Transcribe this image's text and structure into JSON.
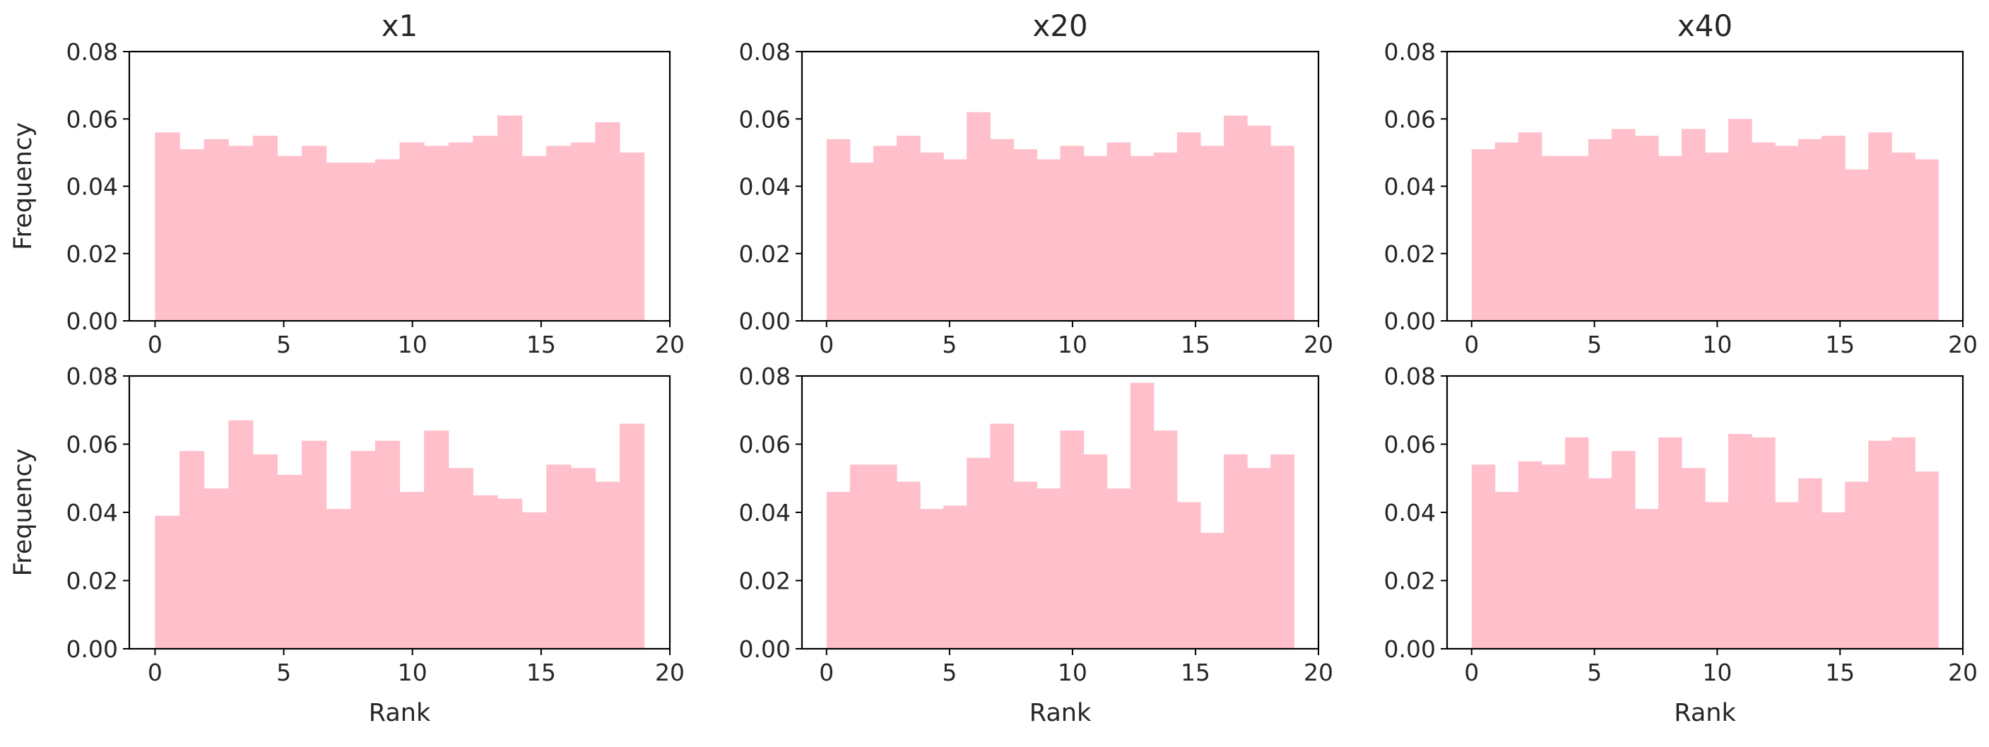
{
  "chart_data": [
    {
      "type": "bar",
      "title": "x1",
      "xlabel": "",
      "ylabel": "Frequency",
      "x": [
        0,
        1,
        2,
        3,
        4,
        5,
        6,
        7,
        8,
        9,
        10,
        11,
        12,
        13,
        14,
        15,
        16,
        17,
        18,
        19
      ],
      "values": [
        0.056,
        0.051,
        0.054,
        0.052,
        0.055,
        0.049,
        0.052,
        0.047,
        0.047,
        0.048,
        0.053,
        0.052,
        0.053,
        0.055,
        0.061,
        0.049,
        0.052,
        0.053,
        0.059,
        0.05
      ],
      "xlim": [
        -1,
        20
      ],
      "ylim": [
        0,
        0.08
      ],
      "xticks": [
        "0",
        "5",
        "10",
        "15",
        "20"
      ],
      "yticks": [
        "0.00",
        "0.02",
        "0.04",
        "0.06",
        "0.08"
      ],
      "color": "#ffc0cb",
      "grid": false
    },
    {
      "type": "bar",
      "title": "x20",
      "xlabel": "",
      "ylabel": "",
      "x": [
        0,
        1,
        2,
        3,
        4,
        5,
        6,
        7,
        8,
        9,
        10,
        11,
        12,
        13,
        14,
        15,
        16,
        17,
        18,
        19
      ],
      "values": [
        0.054,
        0.047,
        0.052,
        0.055,
        0.05,
        0.048,
        0.062,
        0.054,
        0.051,
        0.048,
        0.052,
        0.049,
        0.053,
        0.049,
        0.05,
        0.056,
        0.052,
        0.061,
        0.058,
        0.052
      ],
      "xlim": [
        -1,
        20
      ],
      "ylim": [
        0,
        0.08
      ],
      "xticks": [
        "0",
        "5",
        "10",
        "15",
        "20"
      ],
      "yticks": [
        "0.00",
        "0.02",
        "0.04",
        "0.06",
        "0.08"
      ],
      "color": "#ffc0cb",
      "grid": false
    },
    {
      "type": "bar",
      "title": "x40",
      "xlabel": "",
      "ylabel": "",
      "x": [
        0,
        1,
        2,
        3,
        4,
        5,
        6,
        7,
        8,
        9,
        10,
        11,
        12,
        13,
        14,
        15,
        16,
        17,
        18,
        19
      ],
      "values": [
        0.051,
        0.053,
        0.056,
        0.049,
        0.049,
        0.054,
        0.057,
        0.055,
        0.049,
        0.057,
        0.05,
        0.06,
        0.053,
        0.052,
        0.054,
        0.055,
        0.045,
        0.056,
        0.05,
        0.048
      ],
      "xlim": [
        -1,
        20
      ],
      "ylim": [
        0,
        0.08
      ],
      "xticks": [
        "0",
        "5",
        "10",
        "15",
        "20"
      ],
      "yticks": [
        "0.00",
        "0.02",
        "0.04",
        "0.06",
        "0.08"
      ],
      "color": "#ffc0cb",
      "grid": false
    },
    {
      "type": "bar",
      "title": "",
      "xlabel": "Rank",
      "ylabel": "Frequency",
      "x": [
        0,
        1,
        2,
        3,
        4,
        5,
        6,
        7,
        8,
        9,
        10,
        11,
        12,
        13,
        14,
        15,
        16,
        17,
        18,
        19
      ],
      "values": [
        0.039,
        0.058,
        0.047,
        0.067,
        0.057,
        0.051,
        0.061,
        0.041,
        0.058,
        0.061,
        0.046,
        0.064,
        0.053,
        0.045,
        0.044,
        0.04,
        0.054,
        0.053,
        0.049,
        0.066
      ],
      "xlim": [
        -1,
        20
      ],
      "ylim": [
        0,
        0.08
      ],
      "xticks": [
        "0",
        "5",
        "10",
        "15",
        "20"
      ],
      "yticks": [
        "0.00",
        "0.02",
        "0.04",
        "0.06",
        "0.08"
      ],
      "color": "#ffc0cb",
      "grid": false
    },
    {
      "type": "bar",
      "title": "",
      "xlabel": "Rank",
      "ylabel": "",
      "x": [
        0,
        1,
        2,
        3,
        4,
        5,
        6,
        7,
        8,
        9,
        10,
        11,
        12,
        13,
        14,
        15,
        16,
        17,
        18,
        19
      ],
      "values": [
        0.046,
        0.054,
        0.054,
        0.049,
        0.041,
        0.042,
        0.056,
        0.066,
        0.049,
        0.047,
        0.064,
        0.057,
        0.047,
        0.078,
        0.064,
        0.043,
        0.034,
        0.057,
        0.053,
        0.057
      ],
      "xlim": [
        -1,
        20
      ],
      "ylim": [
        0,
        0.08
      ],
      "xticks": [
        "0",
        "5",
        "10",
        "15",
        "20"
      ],
      "yticks": [
        "0.00",
        "0.02",
        "0.04",
        "0.06",
        "0.08"
      ],
      "color": "#ffc0cb",
      "grid": false
    },
    {
      "type": "bar",
      "title": "",
      "xlabel": "Rank",
      "ylabel": "",
      "x": [
        0,
        1,
        2,
        3,
        4,
        5,
        6,
        7,
        8,
        9,
        10,
        11,
        12,
        13,
        14,
        15,
        16,
        17,
        18,
        19
      ],
      "values": [
        0.054,
        0.046,
        0.055,
        0.054,
        0.062,
        0.05,
        0.058,
        0.041,
        0.062,
        0.053,
        0.043,
        0.063,
        0.062,
        0.043,
        0.05,
        0.04,
        0.049,
        0.061,
        0.062,
        0.052
      ],
      "xlim": [
        -1,
        20
      ],
      "ylim": [
        0,
        0.08
      ],
      "xticks": [
        "0",
        "5",
        "10",
        "15",
        "20"
      ],
      "yticks": [
        "0.00",
        "0.02",
        "0.04",
        "0.06",
        "0.08"
      ],
      "color": "#ffc0cb",
      "grid": false
    }
  ]
}
